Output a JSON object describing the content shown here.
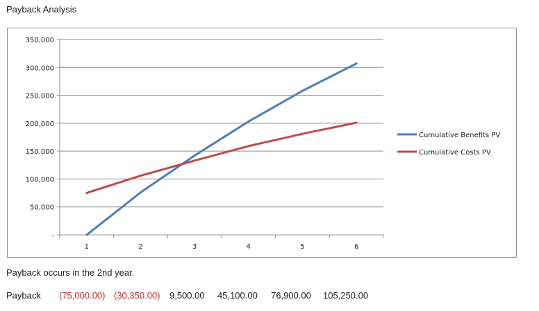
{
  "page": {
    "title": "Payback Analysis"
  },
  "chart_data": {
    "type": "line",
    "categories": [
      "1",
      "2",
      "3",
      "4",
      "5",
      "6"
    ],
    "ylim": [
      0,
      350000
    ],
    "yticks": [
      {
        "value": 0,
        "label": "-"
      },
      {
        "value": 50000,
        "label": "50,000"
      },
      {
        "value": 100000,
        "label": "100,000"
      },
      {
        "value": 150000,
        "label": "150,000"
      },
      {
        "value": 200000,
        "label": "200,000"
      },
      {
        "value": 250000,
        "label": "250,000"
      },
      {
        "value": 300000,
        "label": "300,000"
      },
      {
        "value": 350000,
        "label": "350,000"
      }
    ],
    "grid": true,
    "legend_position": "right",
    "series": [
      {
        "name": "Cumulative Benefits PV",
        "color": "#4a7ebb",
        "values": [
          0,
          76000,
          142000,
          203000,
          258000,
          307000
        ]
      },
      {
        "name": "Cumulative Costs PV",
        "color": "#be4b48",
        "values": [
          75000,
          106000,
          133000,
          159000,
          181000,
          201000
        ]
      }
    ]
  },
  "note": "Payback occurs in the 2nd year.",
  "payback": {
    "label": "Payback",
    "values": [
      {
        "text": "(75,000.00)",
        "negative": true
      },
      {
        "text": "(30,350.00)",
        "negative": true
      },
      {
        "text": "9,500.00",
        "negative": false
      },
      {
        "text": "45,100.00",
        "negative": false
      },
      {
        "text": "76,900.00",
        "negative": false
      },
      {
        "text": "105,250.00",
        "negative": false
      }
    ]
  }
}
